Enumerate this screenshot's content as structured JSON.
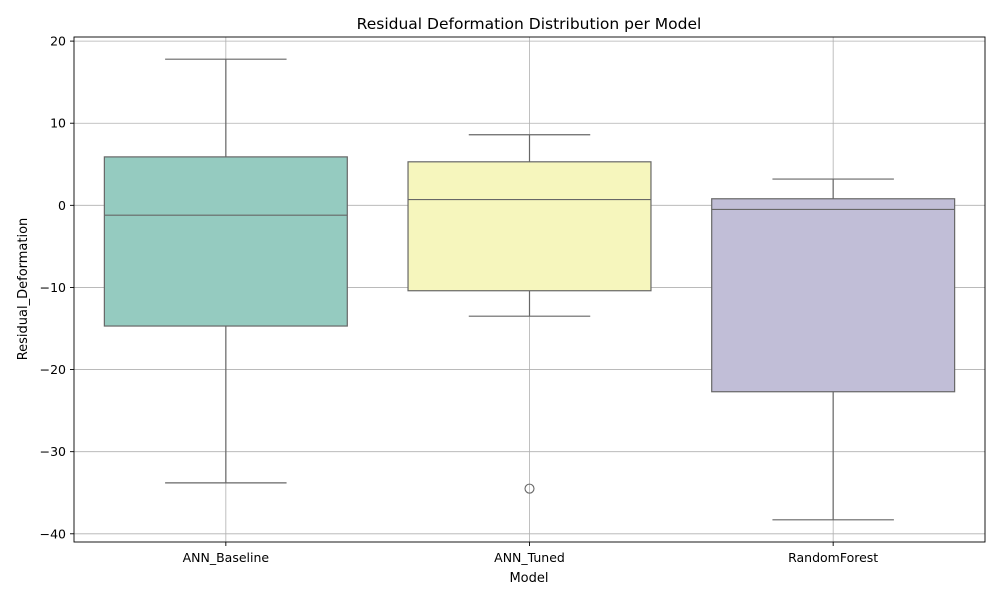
{
  "chart_data": {
    "type": "box",
    "title": "Residual Deformation Distribution per Model",
    "xlabel": "Model",
    "ylabel": "Residual_Deformation",
    "ylim": [
      -41,
      20.5
    ],
    "yticks": [
      20,
      10,
      0,
      -10,
      -20,
      -30,
      -40
    ],
    "ytick_labels": [
      "20",
      "10",
      "0",
      "−10",
      "−20",
      "−30",
      "−40"
    ],
    "grid": true,
    "categories": [
      "ANN_Baseline",
      "ANN_Tuned",
      "RandomForest"
    ],
    "boxes": [
      {
        "category": "ANN_Baseline",
        "whisker_low": -33.8,
        "q1": -14.7,
        "median": -1.2,
        "q3": 5.9,
        "whisker_high": 17.8,
        "outliers": [],
        "color": "#95cbc0"
      },
      {
        "category": "ANN_Tuned",
        "whisker_low": -13.5,
        "q1": -10.4,
        "median": 0.7,
        "q3": 5.3,
        "whisker_high": 8.6,
        "outliers": [
          -34.5
        ],
        "color": "#f6f6bd"
      },
      {
        "category": "RandomForest",
        "whisker_low": -38.3,
        "q1": -22.7,
        "median": -0.5,
        "q3": 0.8,
        "whisker_high": 3.2,
        "outliers": [],
        "color": "#c1bed7"
      }
    ]
  }
}
